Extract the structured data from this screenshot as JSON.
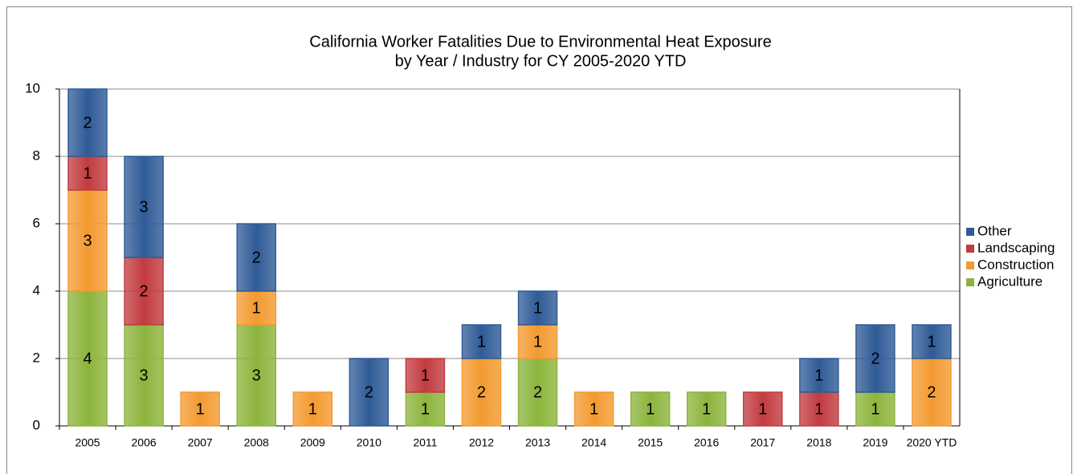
{
  "chart_data": {
    "type": "stacked_bar",
    "title": [
      "California Worker Fatalities Due to Environmental Heat Exposure",
      "by Year / Industry for CY 2005-2020 YTD"
    ],
    "categories": [
      "2005",
      "2006",
      "2007",
      "2008",
      "2009",
      "2010",
      "2011",
      "2012",
      "2013",
      "2014",
      "2015",
      "2016",
      "2017",
      "2018",
      "2019",
      "2020 YTD"
    ],
    "series": [
      {
        "name": "Agriculture",
        "color": "#8cb43c",
        "values": [
          4,
          3,
          null,
          3,
          null,
          null,
          1,
          null,
          2,
          null,
          1,
          1,
          null,
          null,
          1,
          null
        ]
      },
      {
        "name": "Construction",
        "color": "#f39a30",
        "values": [
          3,
          null,
          1,
          1,
          1,
          null,
          null,
          2,
          1,
          1,
          null,
          null,
          null,
          null,
          null,
          2
        ]
      },
      {
        "name": "Landscaping",
        "color": "#c23b3f",
        "values": [
          1,
          2,
          null,
          null,
          null,
          null,
          1,
          null,
          null,
          null,
          null,
          null,
          1,
          1,
          null,
          null
        ]
      },
      {
        "name": "Other",
        "color": "#2f5b97",
        "values": [
          2,
          3,
          null,
          2,
          null,
          2,
          null,
          1,
          1,
          null,
          null,
          null,
          null,
          1,
          2,
          1
        ]
      }
    ],
    "ylim": [
      0,
      10
    ],
    "yticks": [
      0,
      2,
      4,
      6,
      8,
      10
    ],
    "grid": true,
    "legend": "right"
  }
}
